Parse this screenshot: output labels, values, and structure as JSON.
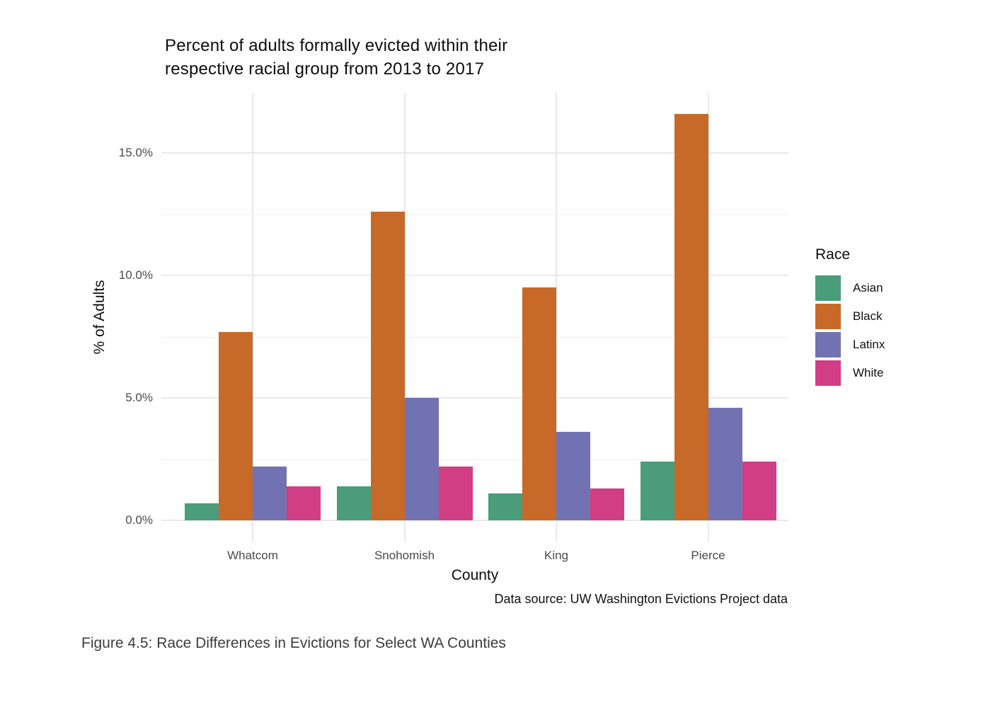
{
  "page": {
    "background": "#ffffff"
  },
  "chart_data": {
    "type": "bar",
    "title": "Percent of adults formally evicted within their\nrespective racial group from 2013 to 2017",
    "xlabel": "County",
    "ylabel": "% of Adults",
    "categories": [
      "Whatcom",
      "Snohomish",
      "King",
      "Pierce"
    ],
    "series": [
      {
        "name": "Asian",
        "color": "#4A9C7B",
        "values": [
          0.7,
          1.4,
          1.1,
          2.4
        ]
      },
      {
        "name": "Black",
        "color": "#C76A29",
        "values": [
          7.7,
          12.6,
          9.5,
          16.6
        ]
      },
      {
        "name": "Latinx",
        "color": "#7272B2",
        "values": [
          2.2,
          5.0,
          3.6,
          4.6
        ]
      },
      {
        "name": "White",
        "color": "#D23E84",
        "values": [
          1.4,
          2.2,
          1.3,
          2.4
        ]
      }
    ],
    "y_ticks": [
      {
        "value": 0,
        "label": "0.0%"
      },
      {
        "value": 5,
        "label": "5.0%"
      },
      {
        "value": 10,
        "label": "10.0%"
      },
      {
        "value": 15,
        "label": "15.0%"
      }
    ],
    "y_minor_ticks": [
      2.5,
      7.5,
      12.5
    ],
    "ylim": [
      0,
      17.45
    ],
    "grid": true,
    "legend_title": "Race",
    "legend_position": "right",
    "caption": "Data source: UW Washington Evictions Project data"
  },
  "figure_caption": "Figure 4.5: Race Differences in Evictions for Select WA Counties",
  "colors": {
    "background": "#ffffff",
    "grid_major": "#e9e9e9",
    "grid_minor": "#efefef",
    "tick_label": "#4a4a4a",
    "axis_title": "#0d0d0d",
    "caption_text": "#3d3d3d"
  }
}
